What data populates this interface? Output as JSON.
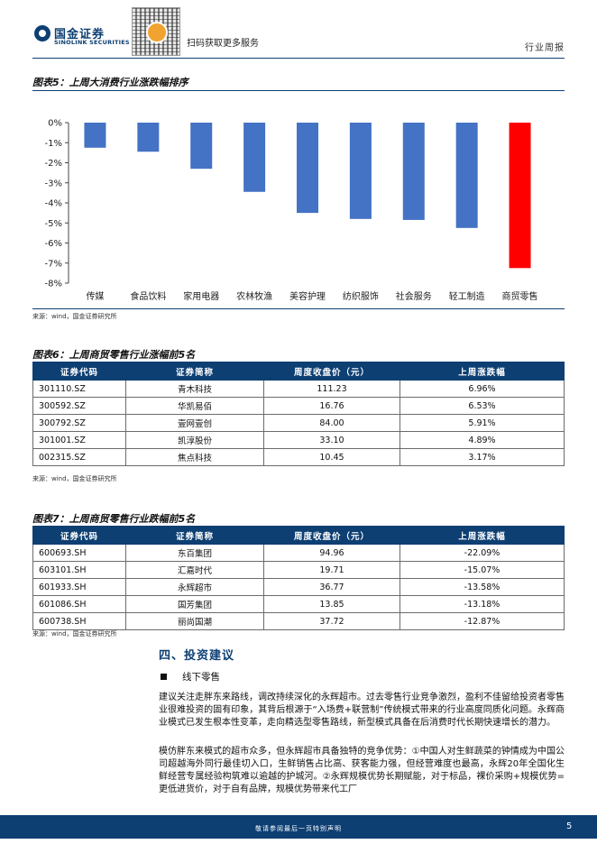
{
  "header": {
    "brand_cn": "国金证券",
    "brand_en": "SINOLINK SECURITIES",
    "qr_text": "扫码获取更多服务",
    "doc_type": "行业周报"
  },
  "figure5": {
    "title": "图表5：上周大消费行业涨跌幅排序",
    "source": "来源：wind，国金证券研究所"
  },
  "chart_data": {
    "type": "bar",
    "title": "",
    "categories": [
      "传媒",
      "食品饮料",
      "家用电器",
      "农林牧渔",
      "美容护理",
      "纺织服饰",
      "社会服务",
      "轻工制造",
      "商贸零售"
    ],
    "values": [
      -1.25,
      -1.45,
      -2.3,
      -3.45,
      -4.5,
      -4.8,
      -4.85,
      -5.25,
      -7.25
    ],
    "ylim": [
      -8,
      0
    ],
    "yticks": [
      "0%",
      "-1%",
      "-2%",
      "-3%",
      "-4%",
      "-5%",
      "-6%",
      "-7%",
      "-8%"
    ],
    "xlabel": "",
    "ylabel": "",
    "colors": {
      "default": "#4472c4",
      "highlight": "#ff0000"
    },
    "highlight_index": 8,
    "grid": false,
    "legend": "none"
  },
  "figure6": {
    "title": "图表6：上周商贸零售行业涨幅前5名",
    "columns": [
      "证券代码",
      "证券简称",
      "周度收盘价（元）",
      "上周涨跌幅"
    ],
    "rows": [
      [
        "301110.SZ",
        "青木科技",
        "111.23",
        "6.96%"
      ],
      [
        "300592.SZ",
        "华凯易佰",
        "16.76",
        "6.53%"
      ],
      [
        "300792.SZ",
        "壹网壹创",
        "84.00",
        "5.91%"
      ],
      [
        "301001.SZ",
        "凯淳股份",
        "33.10",
        "4.89%"
      ],
      [
        "002315.SZ",
        "焦点科技",
        "10.45",
        "3.17%"
      ]
    ],
    "source": "来源：wind，国金证券研究所"
  },
  "figure7": {
    "title": "图表7：上周商贸零售行业跌幅前5名",
    "columns": [
      "证券代码",
      "证券简称",
      "周度收盘价（元）",
      "上周涨跌幅"
    ],
    "rows": [
      [
        "600693.SH",
        "东百集团",
        "94.96",
        "-22.09%"
      ],
      [
        "603101.SH",
        "汇嘉时代",
        "19.71",
        "-15.07%"
      ],
      [
        "601933.SH",
        "永辉超市",
        "36.77",
        "-13.58%"
      ],
      [
        "601086.SH",
        "国芳集团",
        "13.85",
        "-13.18%"
      ],
      [
        "600738.SH",
        "丽尚国潮",
        "37.72",
        "-12.87%"
      ]
    ],
    "source": "来源：wind，国金证券研究所"
  },
  "section4": {
    "heading": "四、投资建议",
    "bullet": "线下零售",
    "para1": "建议关注走胖东来路线，调改持续深化的永辉超市。过去零售行业竞争激烈，盈利不佳留给投资者零售业很难投资的固有印象，其背后根源于“入场费+联营制”传统模式带来的行业高度同质化问题。永辉商业模式已发生根本性变革，走向精选型零售路线，新型模式具备在后消费时代长期快速增长的潜力。",
    "para2": "模仿胖东来模式的超市众多，但永辉超市具备独特的竞争优势：①中国人对生鲜蔬菜的钟情成为中国公司超越海外同行最佳切入口，生鲜销售占比高、获客能力强，但经营难度也最高，永辉20年全国化生鲜经营专属经验构筑难以逾越的护城河。②永辉规模优势长期赋能，对于标品，裸价采购+规模优势=更低进货价，对于自有品牌，规模优势带来代工厂"
  },
  "footer": {
    "disclaimer": "敬请参阅最后一页特别声明",
    "page": "5"
  }
}
